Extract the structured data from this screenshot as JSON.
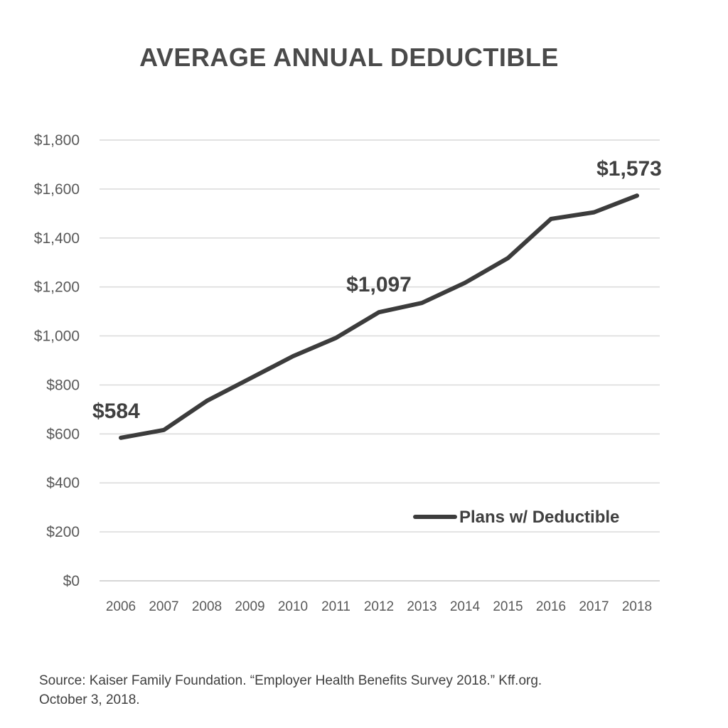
{
  "chart_data": {
    "type": "line",
    "title": "AVERAGE ANNUAL DEDUCTIBLE",
    "categories": [
      "2006",
      "2007",
      "2008",
      "2009",
      "2010",
      "2011",
      "2012",
      "2013",
      "2014",
      "2015",
      "2016",
      "2017",
      "2018"
    ],
    "series": [
      {
        "name": "Plans w/ Deductible",
        "values": [
          584,
          616,
          735,
          826,
          917,
          992,
          1097,
          1135,
          1217,
          1318,
          1478,
          1505,
          1573
        ],
        "color": "#3c3c3c"
      }
    ],
    "yticks": [
      "$0",
      "$200",
      "$400",
      "$600",
      "$800",
      "$1,000",
      "$1,200",
      "$1,400",
      "$1,600",
      "$1,800"
    ],
    "ylim": [
      0,
      1800
    ],
    "ystep": 200,
    "grid": true,
    "legend_position": "bottom-right",
    "annotations": [
      {
        "index": 0,
        "text": "$584"
      },
      {
        "index": 6,
        "text": "$1,097"
      },
      {
        "index": 12,
        "text": "$1,573"
      }
    ]
  },
  "source": {
    "line1": "Source: Kaiser Family Foundation. “Employer Health Benefits Survey 2018.” Kff.org.",
    "line2": "October 3, 2018."
  }
}
